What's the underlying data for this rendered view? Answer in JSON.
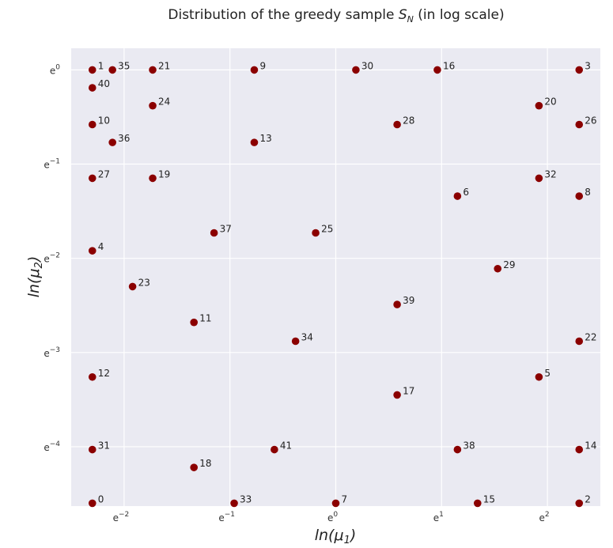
{
  "chart_data": {
    "type": "scatter",
    "title": "Distribution of the greedy sample S_N (in log scale)",
    "xlabel": "ln(μ1)",
    "ylabel": "ln(μ2)",
    "xscale": "log",
    "yscale": "log",
    "xlim_ln": [
      -2.5,
      2.5
    ],
    "ylim_ln": [
      -4.63,
      0.23
    ],
    "xticks": [
      {
        "ln": -2,
        "base": "e",
        "exp": "−2"
      },
      {
        "ln": -1,
        "base": "e",
        "exp": "−1"
      },
      {
        "ln": 0,
        "base": "e",
        "exp": "0"
      },
      {
        "ln": 1,
        "base": "e",
        "exp": "1"
      },
      {
        "ln": 2,
        "base": "e",
        "exp": "2"
      }
    ],
    "yticks": [
      {
        "ln": 0,
        "base": "e",
        "exp": "0"
      },
      {
        "ln": -1,
        "base": "e",
        "exp": "−1"
      },
      {
        "ln": -2,
        "base": "e",
        "exp": "−2"
      },
      {
        "ln": -3,
        "base": "e",
        "exp": "−3"
      },
      {
        "ln": -4,
        "base": "e",
        "exp": "−4"
      }
    ],
    "grid": true,
    "marker_color": "#8b0000",
    "background_color": "#eaeaf2",
    "grid_color": "#ffffff",
    "points": [
      {
        "label": "0",
        "x_ln": -2.3,
        "y_ln": -4.6
      },
      {
        "label": "1",
        "x_ln": -2.3,
        "y_ln": 0.0
      },
      {
        "label": "2",
        "x_ln": 2.3,
        "y_ln": -4.6
      },
      {
        "label": "3",
        "x_ln": 2.3,
        "y_ln": 0.0
      },
      {
        "label": "4",
        "x_ln": -2.3,
        "y_ln": -1.92
      },
      {
        "label": "5",
        "x_ln": 1.92,
        "y_ln": -3.26
      },
      {
        "label": "6",
        "x_ln": 1.15,
        "y_ln": -1.34
      },
      {
        "label": "7",
        "x_ln": 0.0,
        "y_ln": -4.6
      },
      {
        "label": "8",
        "x_ln": 2.3,
        "y_ln": -1.34
      },
      {
        "label": "9",
        "x_ln": -0.77,
        "y_ln": 0.0
      },
      {
        "label": "10",
        "x_ln": -2.3,
        "y_ln": -0.58
      },
      {
        "label": "11",
        "x_ln": -1.34,
        "y_ln": -2.68
      },
      {
        "label": "12",
        "x_ln": -2.3,
        "y_ln": -3.26
      },
      {
        "label": "13",
        "x_ln": -0.77,
        "y_ln": -0.77
      },
      {
        "label": "14",
        "x_ln": 2.3,
        "y_ln": -4.03
      },
      {
        "label": "15",
        "x_ln": 1.34,
        "y_ln": -4.6
      },
      {
        "label": "16",
        "x_ln": 0.96,
        "y_ln": 0.0
      },
      {
        "label": "17",
        "x_ln": 0.58,
        "y_ln": -3.45
      },
      {
        "label": "18",
        "x_ln": -1.34,
        "y_ln": -4.22
      },
      {
        "label": "19",
        "x_ln": -1.73,
        "y_ln": -1.15
      },
      {
        "label": "20",
        "x_ln": 1.92,
        "y_ln": -0.38
      },
      {
        "label": "21",
        "x_ln": -1.73,
        "y_ln": 0.0
      },
      {
        "label": "22",
        "x_ln": 2.3,
        "y_ln": -2.88
      },
      {
        "label": "23",
        "x_ln": -1.92,
        "y_ln": -2.3
      },
      {
        "label": "24",
        "x_ln": -1.73,
        "y_ln": -0.38
      },
      {
        "label": "25",
        "x_ln": -0.19,
        "y_ln": -1.73
      },
      {
        "label": "26",
        "x_ln": 2.3,
        "y_ln": -0.58
      },
      {
        "label": "27",
        "x_ln": -2.3,
        "y_ln": -1.15
      },
      {
        "label": "28",
        "x_ln": 0.58,
        "y_ln": -0.58
      },
      {
        "label": "29",
        "x_ln": 1.53,
        "y_ln": -2.11
      },
      {
        "label": "30",
        "x_ln": 0.19,
        "y_ln": 0.0
      },
      {
        "label": "31",
        "x_ln": -2.3,
        "y_ln": -4.03
      },
      {
        "label": "32",
        "x_ln": 1.92,
        "y_ln": -1.15
      },
      {
        "label": "33",
        "x_ln": -0.96,
        "y_ln": -4.6
      },
      {
        "label": "34",
        "x_ln": -0.38,
        "y_ln": -2.88
      },
      {
        "label": "35",
        "x_ln": -2.11,
        "y_ln": 0.0
      },
      {
        "label": "36",
        "x_ln": -2.11,
        "y_ln": -0.77
      },
      {
        "label": "37",
        "x_ln": -1.15,
        "y_ln": -1.73
      },
      {
        "label": "38",
        "x_ln": 1.15,
        "y_ln": -4.03
      },
      {
        "label": "39",
        "x_ln": 0.58,
        "y_ln": -2.49
      },
      {
        "label": "40",
        "x_ln": -2.3,
        "y_ln": -0.19
      },
      {
        "label": "41",
        "x_ln": -0.58,
        "y_ln": -4.03
      }
    ]
  }
}
